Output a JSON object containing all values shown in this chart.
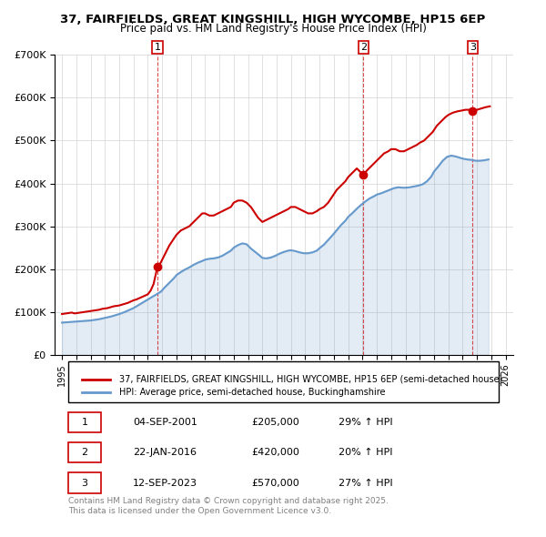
{
  "title": "37, FAIRFIELDS, GREAT KINGSHILL, HIGH WYCOMBE, HP15 6EP",
  "subtitle": "Price paid vs. HM Land Registry's House Price Index (HPI)",
  "red_label": "37, FAIRFIELDS, GREAT KINGSHILL, HIGH WYCOMBE, HP15 6EP (semi-detached house)",
  "blue_label": "HPI: Average price, semi-detached house, Buckinghamshire",
  "footnote": "Contains HM Land Registry data © Crown copyright and database right 2025.\nThis data is licensed under the Open Government Licence v3.0.",
  "sales": [
    {
      "num": 1,
      "date": "2001-09-04",
      "price": 205000,
      "hpi_pct": 29,
      "x_year": 2001.67
    },
    {
      "num": 2,
      "date": "2016-01-22",
      "price": 420000,
      "hpi_pct": 20,
      "x_year": 2016.06
    },
    {
      "num": 3,
      "date": "2023-09-12",
      "price": 570000,
      "hpi_pct": 27,
      "x_year": 2023.7
    }
  ],
  "table_rows": [
    {
      "num": 1,
      "date_str": "04-SEP-2001",
      "price_str": "£205,000",
      "hpi_str": "29% ↑ HPI"
    },
    {
      "num": 2,
      "date_str": "22-JAN-2016",
      "price_str": "£420,000",
      "hpi_str": "20% ↑ HPI"
    },
    {
      "num": 3,
      "date_str": "12-SEP-2023",
      "price_str": "£570,000",
      "hpi_str": "27% ↑ HPI"
    }
  ],
  "red_color": "#cc0000",
  "blue_color": "#6699cc",
  "ylim": [
    0,
    700000
  ],
  "xlim": [
    1994.5,
    2026.5
  ],
  "red_x": [
    1995.0,
    1995.1,
    1995.2,
    1995.3,
    1995.4,
    1995.5,
    1995.6,
    1995.7,
    1995.8,
    1995.9,
    1996.0,
    1996.1,
    1996.2,
    1996.3,
    1996.4,
    1996.5,
    1996.6,
    1996.7,
    1996.8,
    1996.9,
    1997.0,
    1997.2,
    1997.4,
    1997.6,
    1997.8,
    1998.0,
    1998.2,
    1998.4,
    1998.6,
    1998.8,
    1999.0,
    1999.2,
    1999.4,
    1999.6,
    1999.8,
    2000.0,
    2000.2,
    2000.4,
    2000.6,
    2000.8,
    2001.0,
    2001.2,
    2001.4,
    2001.67,
    2001.9,
    2002.2,
    2002.5,
    2002.8,
    2003.0,
    2003.3,
    2003.6,
    2003.9,
    2004.2,
    2004.5,
    2004.8,
    2005.0,
    2005.3,
    2005.6,
    2005.9,
    2006.2,
    2006.5,
    2006.8,
    2007.0,
    2007.3,
    2007.6,
    2007.9,
    2008.2,
    2008.5,
    2008.7,
    2009.0,
    2009.3,
    2009.6,
    2009.9,
    2010.2,
    2010.5,
    2010.8,
    2011.0,
    2011.3,
    2011.6,
    2011.9,
    2012.2,
    2012.5,
    2012.8,
    2013.0,
    2013.3,
    2013.6,
    2013.9,
    2014.2,
    2014.5,
    2014.8,
    2015.0,
    2015.3,
    2015.6,
    2016.06,
    2016.3,
    2016.6,
    2016.9,
    2017.2,
    2017.5,
    2017.8,
    2018.0,
    2018.3,
    2018.6,
    2018.9,
    2019.2,
    2019.5,
    2019.8,
    2020.0,
    2020.3,
    2020.6,
    2020.9,
    2021.2,
    2021.5,
    2021.8,
    2022.0,
    2022.3,
    2022.6,
    2022.9,
    2023.2,
    2023.5,
    2023.7,
    2024.0,
    2024.3,
    2024.6,
    2024.9
  ],
  "red_y": [
    95000,
    95500,
    96000,
    96500,
    97000,
    97500,
    98000,
    98500,
    97000,
    96500,
    97000,
    97500,
    98000,
    98500,
    99000,
    99500,
    100000,
    100500,
    101000,
    101500,
    102000,
    103000,
    104000,
    105000,
    107000,
    108000,
    109000,
    111000,
    113000,
    114000,
    115000,
    117000,
    119000,
    121000,
    124000,
    127000,
    129000,
    132000,
    135000,
    138000,
    141000,
    150000,
    165000,
    205000,
    215000,
    235000,
    255000,
    270000,
    280000,
    290000,
    295000,
    300000,
    310000,
    320000,
    330000,
    330000,
    325000,
    325000,
    330000,
    335000,
    340000,
    345000,
    355000,
    360000,
    360000,
    355000,
    345000,
    330000,
    320000,
    310000,
    315000,
    320000,
    325000,
    330000,
    335000,
    340000,
    345000,
    345000,
    340000,
    335000,
    330000,
    330000,
    335000,
    340000,
    345000,
    355000,
    370000,
    385000,
    395000,
    405000,
    415000,
    425000,
    435000,
    420000,
    430000,
    440000,
    450000,
    460000,
    470000,
    475000,
    480000,
    480000,
    475000,
    475000,
    480000,
    485000,
    490000,
    495000,
    500000,
    510000,
    520000,
    535000,
    545000,
    555000,
    560000,
    565000,
    568000,
    570000,
    572000,
    572000,
    570000,
    572000,
    575000,
    578000,
    580000
  ],
  "blue_x": [
    1995.0,
    1995.2,
    1995.4,
    1995.6,
    1995.8,
    1996.0,
    1996.2,
    1996.4,
    1996.6,
    1996.8,
    1997.0,
    1997.2,
    1997.4,
    1997.6,
    1997.8,
    1998.0,
    1998.2,
    1998.4,
    1998.6,
    1998.8,
    1999.0,
    1999.2,
    1999.4,
    1999.6,
    1999.8,
    2000.0,
    2000.2,
    2000.4,
    2000.6,
    2000.8,
    2001.0,
    2001.3,
    2001.6,
    2001.9,
    2002.2,
    2002.5,
    2002.8,
    2003.0,
    2003.3,
    2003.6,
    2003.9,
    2004.2,
    2004.5,
    2004.8,
    2005.0,
    2005.3,
    2005.6,
    2005.9,
    2006.2,
    2006.5,
    2006.8,
    2007.0,
    2007.3,
    2007.6,
    2007.9,
    2008.2,
    2008.5,
    2008.8,
    2009.0,
    2009.3,
    2009.6,
    2009.9,
    2010.2,
    2010.5,
    2010.8,
    2011.0,
    2011.3,
    2011.6,
    2011.9,
    2012.2,
    2012.5,
    2012.8,
    2013.0,
    2013.3,
    2013.6,
    2013.9,
    2014.2,
    2014.5,
    2014.8,
    2015.0,
    2015.3,
    2015.6,
    2015.9,
    2016.2,
    2016.5,
    2016.8,
    2017.0,
    2017.3,
    2017.6,
    2017.9,
    2018.2,
    2018.5,
    2018.8,
    2019.0,
    2019.3,
    2019.6,
    2019.9,
    2020.2,
    2020.5,
    2020.8,
    2021.0,
    2021.3,
    2021.6,
    2021.9,
    2022.2,
    2022.5,
    2022.8,
    2023.0,
    2023.3,
    2023.6,
    2023.9,
    2024.2,
    2024.5,
    2024.8
  ],
  "blue_y": [
    75000,
    75500,
    76000,
    76500,
    77000,
    77500,
    78000,
    78500,
    79000,
    79500,
    80000,
    81000,
    82000,
    83000,
    84500,
    86000,
    87500,
    89000,
    91000,
    93000,
    95000,
    97500,
    100000,
    103000,
    106000,
    109000,
    113000,
    117000,
    121000,
    125000,
    129000,
    135000,
    141000,
    147000,
    158000,
    168000,
    178000,
    186000,
    193000,
    199000,
    204000,
    210000,
    215000,
    219000,
    222000,
    224000,
    225000,
    227000,
    231000,
    237000,
    243000,
    250000,
    256000,
    260000,
    258000,
    248000,
    240000,
    232000,
    226000,
    225000,
    227000,
    231000,
    236000,
    240000,
    243000,
    244000,
    242000,
    239000,
    237000,
    237000,
    239000,
    243000,
    249000,
    257000,
    268000,
    279000,
    291000,
    303000,
    313000,
    322000,
    331000,
    341000,
    350000,
    358000,
    365000,
    370000,
    374000,
    377000,
    381000,
    385000,
    389000,
    391000,
    390000,
    390000,
    391000,
    393000,
    395000,
    398000,
    405000,
    416000,
    428000,
    440000,
    453000,
    462000,
    465000,
    463000,
    460000,
    458000,
    456000,
    455000,
    453000,
    453000,
    454000,
    456000
  ]
}
